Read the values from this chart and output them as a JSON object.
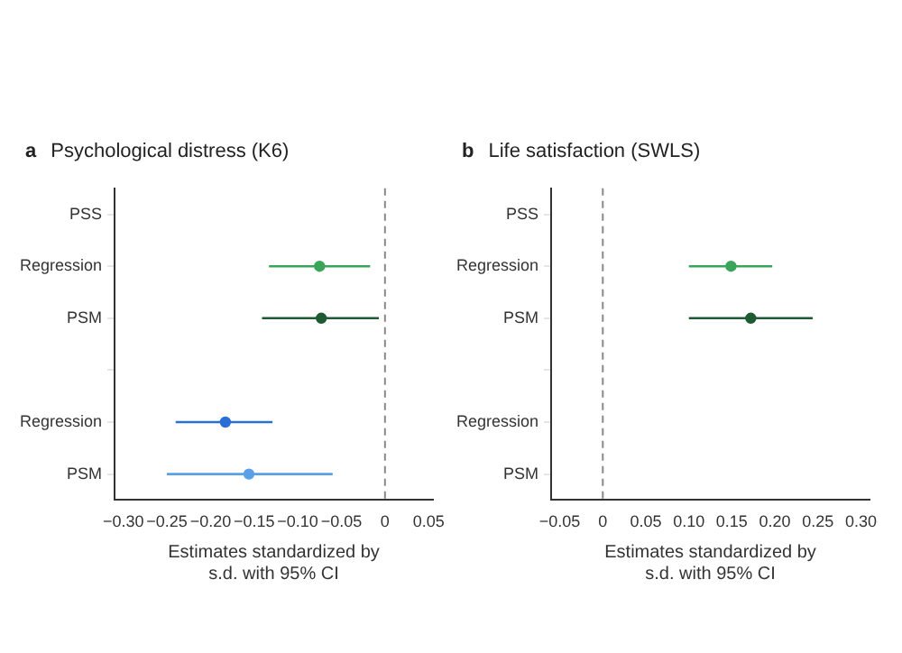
{
  "chart_data": [
    {
      "type": "scatter",
      "orientation": "horizontal",
      "annotations": [
        "a"
      ],
      "title": "Psychological distress (K6)",
      "xlabel": "Estimates standardized by\ns.d. with 95% CI",
      "categories": [
        "PSS",
        "Regression",
        "PSM",
        null,
        "Regression",
        "PSM"
      ],
      "values": [
        null,
        -0.075,
        -0.073,
        null,
        -0.183,
        -0.156
      ],
      "errors": [
        null,
        [
          -0.133,
          -0.017
        ],
        [
          -0.141,
          -0.007
        ],
        null,
        [
          -0.24,
          -0.129
        ],
        [
          -0.25,
          -0.06
        ]
      ],
      "colors": [
        "#3aa55a",
        "#3aa55a",
        "#1e5a32",
        "#2a6fd6",
        "#2a6fd6",
        "#5aa0e8"
      ],
      "xlim": [
        -0.31,
        0.055
      ],
      "xticks": [
        {
          "value": -0.3,
          "label": "−0.30"
        },
        {
          "value": -0.25,
          "label": "−0.25"
        },
        {
          "value": -0.2,
          "label": "−0.20"
        },
        {
          "value": -0.15,
          "label": "−0.15"
        },
        {
          "value": -0.1,
          "label": "−0.10"
        },
        {
          "value": -0.05,
          "label": "−0.05"
        },
        0,
        0.05
      ],
      "ref_lines": [
        {
          "axis": "x",
          "value": 0,
          "line_style": "dashed",
          "color": "#888888"
        }
      ],
      "grid": false,
      "legend": false,
      "marker": "circle"
    },
    {
      "type": "scatter",
      "orientation": "horizontal",
      "annotations": [
        "b"
      ],
      "title": "Life satisfaction (SWLS)",
      "xlabel": "Estimates standardized by\ns.d. with 95% CI",
      "categories": [
        "PSS",
        "Regression",
        "PSM",
        null,
        "Regression",
        "PSM"
      ],
      "values": [
        null,
        0.149,
        0.172,
        null,
        null,
        null
      ],
      "errors": [
        null,
        [
          0.1,
          0.197
        ],
        [
          0.1,
          0.244
        ],
        null,
        null,
        null
      ],
      "colors": [
        "#3aa55a",
        "#3aa55a",
        "#1e5a32",
        "#2a6fd6",
        "#2a6fd6",
        "#5aa0e8"
      ],
      "xlim": [
        -0.06,
        0.31
      ],
      "xticks": [
        {
          "value": -0.05,
          "label": "−0.05"
        },
        0,
        0.05,
        {
          "value": 0.1,
          "label": "0.10"
        },
        0.15,
        {
          "value": 0.2,
          "label": "0.20"
        },
        0.25,
        {
          "value": 0.3,
          "label": "0.30"
        }
      ],
      "ref_lines": [
        {
          "axis": "x",
          "value": 0,
          "line_style": "dashed",
          "color": "#888888"
        }
      ],
      "grid": false,
      "legend": false,
      "marker": "circle"
    }
  ]
}
